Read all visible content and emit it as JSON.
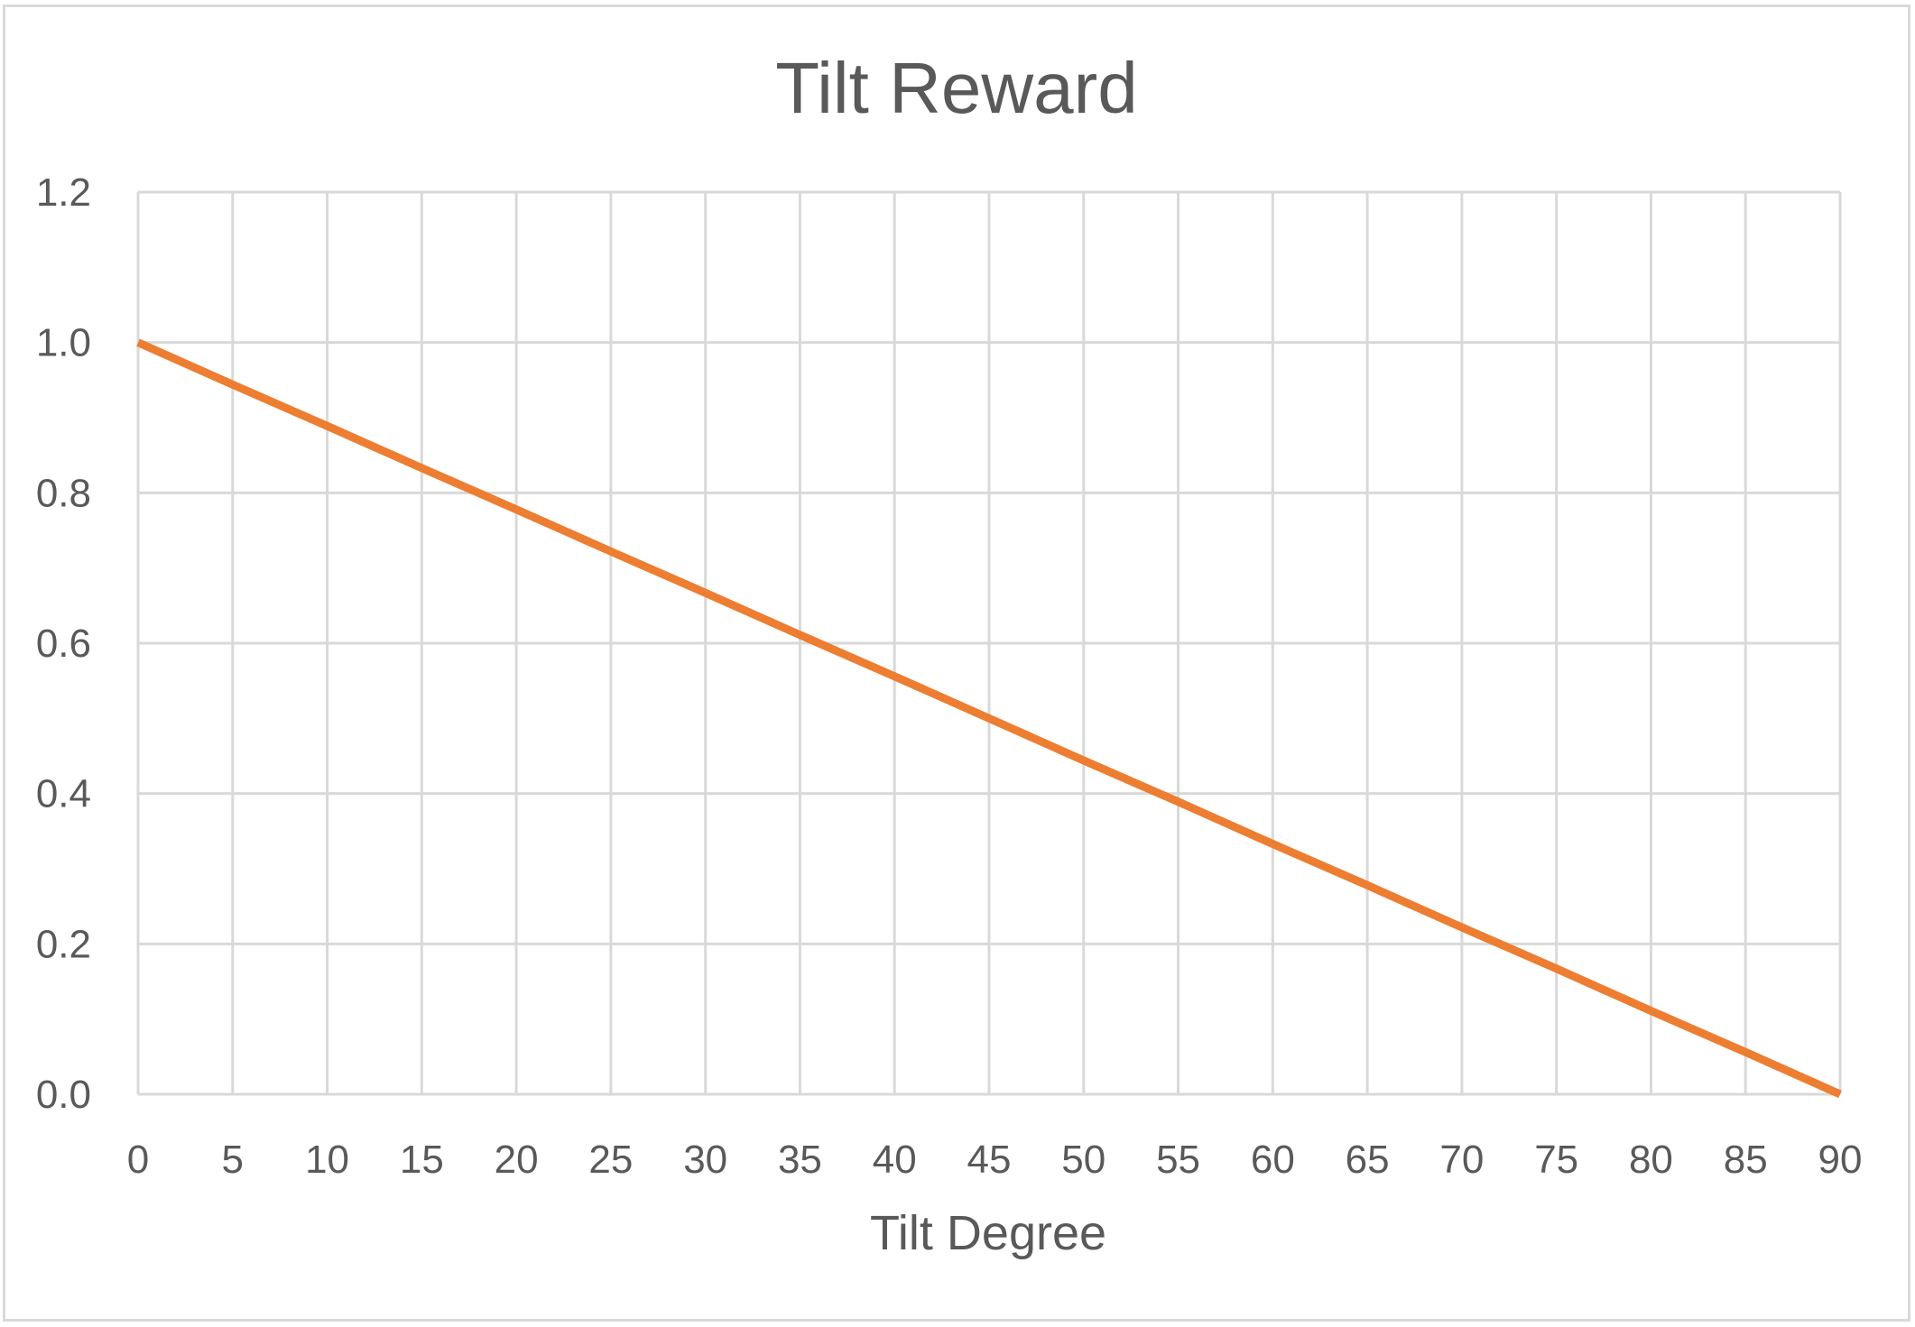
{
  "chart_data": {
    "type": "line",
    "title": "Tilt Reward",
    "xlabel": "Tilt Degree",
    "ylabel": "",
    "x": [
      0,
      5,
      10,
      15,
      20,
      25,
      30,
      35,
      40,
      45,
      50,
      55,
      60,
      65,
      70,
      75,
      80,
      85,
      90
    ],
    "x_tick_labels": [
      "0",
      "5",
      "10",
      "15",
      "20",
      "25",
      "30",
      "35",
      "40",
      "45",
      "50",
      "55",
      "60",
      "65",
      "70",
      "75",
      "80",
      "85",
      "90"
    ],
    "y_tick_labels": [
      "0.0",
      "0.2",
      "0.4",
      "0.6",
      "0.8",
      "1.0",
      "1.2"
    ],
    "y_ticks": [
      0,
      0.2,
      0.4,
      0.6,
      0.8,
      1.0,
      1.2
    ],
    "xlim": [
      0,
      90
    ],
    "ylim": [
      0,
      1.2
    ],
    "grid": true,
    "legend": "none",
    "series": [
      {
        "values": [
          1.0,
          0.944,
          0.889,
          0.833,
          0.778,
          0.722,
          0.667,
          0.611,
          0.556,
          0.5,
          0.444,
          0.389,
          0.333,
          0.278,
          0.222,
          0.167,
          0.111,
          0.056,
          0.0
        ],
        "color": "#ED7D31"
      }
    ]
  }
}
